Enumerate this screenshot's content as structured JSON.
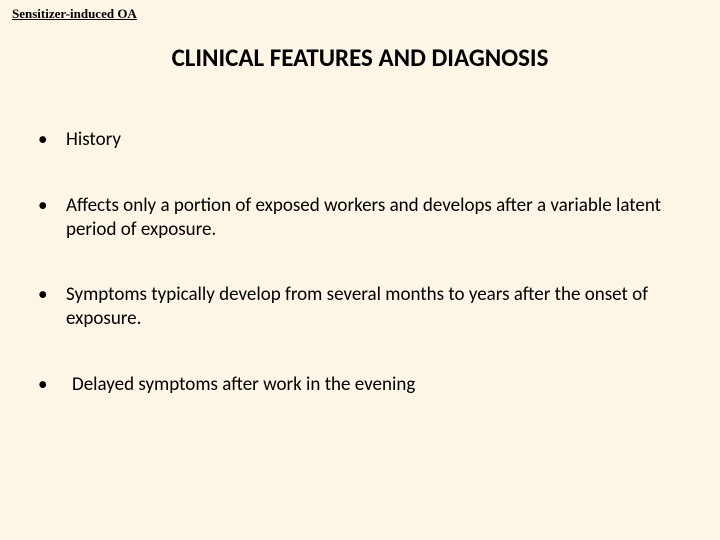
{
  "header": {
    "label": "Sensitizer-induced OA"
  },
  "title": "CLINICAL FEATURES AND DIAGNOSIS",
  "bullets": [
    {
      "text": " History"
    },
    {
      "text": "Affects only a portion of exposed workers and develops after a variable latent period of exposure."
    },
    {
      "text": " Symptoms typically develop from several months to years after the onset of exposure."
    },
    {
      "text": "  Delayed symptoms after work in the evening"
    }
  ],
  "style": {
    "background_color": "#fdf5e6",
    "text_color": "#000000",
    "title_fontsize": 25,
    "body_fontsize": 19,
    "header_fontsize": 13,
    "bullet_marker": "•"
  }
}
